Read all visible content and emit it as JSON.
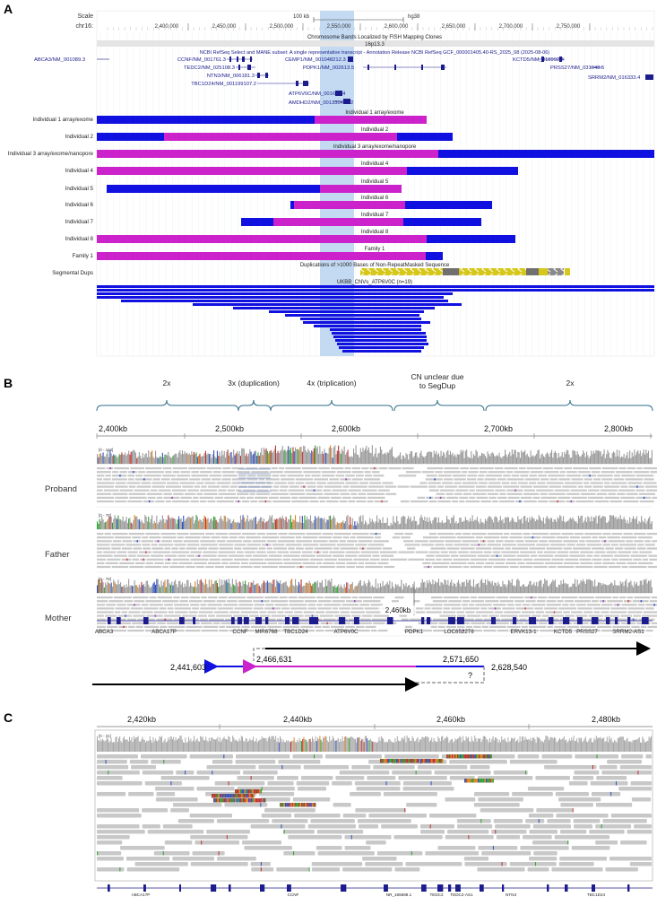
{
  "panels": {
    "a": "A",
    "b": "B",
    "c": "C"
  },
  "panelA": {
    "scale_label": "Scale",
    "chrom_label": "chr16:",
    "scale_bar": "100 kb",
    "assembly": "hg38",
    "positions": [
      "2,400,000",
      "2,450,000",
      "2,500,000",
      "2,550,000",
      "2,600,000",
      "2,650,000",
      "2,700,000",
      "2,750,000"
    ],
    "band_track_title": "Chromosome Bands Localized by FISH Mapping Clones",
    "band_name": "16p13.3",
    "refseq_title": "NCBI RefSeq Select and MANE subset: A single representative transcript - Annotation Release NCBI RefSeq GCF_000001405.40-RS_2025_08 (2025-08-06)",
    "genes": [
      "ABCA3/NM_001089.3",
      "CCNF/NM_001761.3",
      "TEDC2/NM_025108.3",
      "NTN3/NM_006181.3",
      "TBC1D24/NM_001199107.2",
      "CEMP1/NM_001048212.3",
      "PDPK1/NM_002613.5",
      "ATP6V0C/NM_001694.4",
      "AMDHD2/NM_001330449.2",
      "KCTD5/NM_018992.4",
      "PRSS27/NM_031948.5",
      "SRRM2/NM_016333.4"
    ],
    "cnv_tracks": [
      {
        "label": "Individual 1 array/exome",
        "title": "Individual 1 array/exome"
      },
      {
        "label": "Individual 2",
        "title": "Individual 2"
      },
      {
        "label": "Individual 3 array/exome/nanopore",
        "title": "Individual 3 array/exome/nanopore"
      },
      {
        "label": "Individual 4",
        "title": "Individual 4"
      },
      {
        "label": "Individual 5",
        "title": "Individual 5"
      },
      {
        "label": "Individual 6",
        "title": "Individual 6"
      },
      {
        "label": "Individual 7",
        "title": "Individual 7"
      },
      {
        "label": "Individual 8",
        "title": "Individual 8"
      },
      {
        "label": "Family 1",
        "title": "Family 1"
      }
    ],
    "segdup_label": "Segmental Dups",
    "segdup_title": "Duplications of >1000 Bases of Non-RepeatMasked Sequence",
    "ukbb_title": "UKBB_CNVs_ATP6V0C (n=19)",
    "colors": {
      "deletion_blue": "#1010e0",
      "dup_magenta": "#cc22cc",
      "highlight": "#b8d3f0",
      "gene_navy": "#1c1c8c",
      "segdup_yellow": "#d6c81a",
      "segdup_gray": "#707070"
    }
  },
  "panelB": {
    "copy_numbers": [
      "2x",
      "3x (duplication)",
      "4x (triplication)",
      "CN unclear due to SegDup",
      "2x"
    ],
    "axis": [
      "2,400kb",
      "2,500kb",
      "2,600kb",
      "2,700kb",
      "2,800kb"
    ],
    "samples": [
      "Proband",
      "Father",
      "Mother"
    ],
    "coverage_ranges": [
      "[0 - 113]",
      "[0 - 78]",
      "[0 - 78]"
    ],
    "cursor_label": "2,460kb",
    "genes": [
      "ABCA3",
      "ABCA17P",
      "CCNF",
      "MIR6768",
      "TBC1D24",
      "ATP6V0C",
      "PDPK1",
      "LOC652276",
      "ERVK13-1",
      "KCTD5",
      "PRSS27",
      "SRRM2-AS1"
    ],
    "breakpoints": [
      "2,441,603",
      "2,466,631",
      "2,571,650",
      "2,628,540"
    ],
    "unknown": "?"
  },
  "panelC": {
    "axis": [
      "2,420kb",
      "2,440kb",
      "2,460kb",
      "2,480kb"
    ],
    "coverage_range": "[0 - 31]",
    "genes": [
      "ABCA17P",
      "CCNF",
      "NR_186688.1",
      "TEDC2",
      "TEDC2-AS1",
      "NTN3",
      "TBC1D24"
    ]
  }
}
